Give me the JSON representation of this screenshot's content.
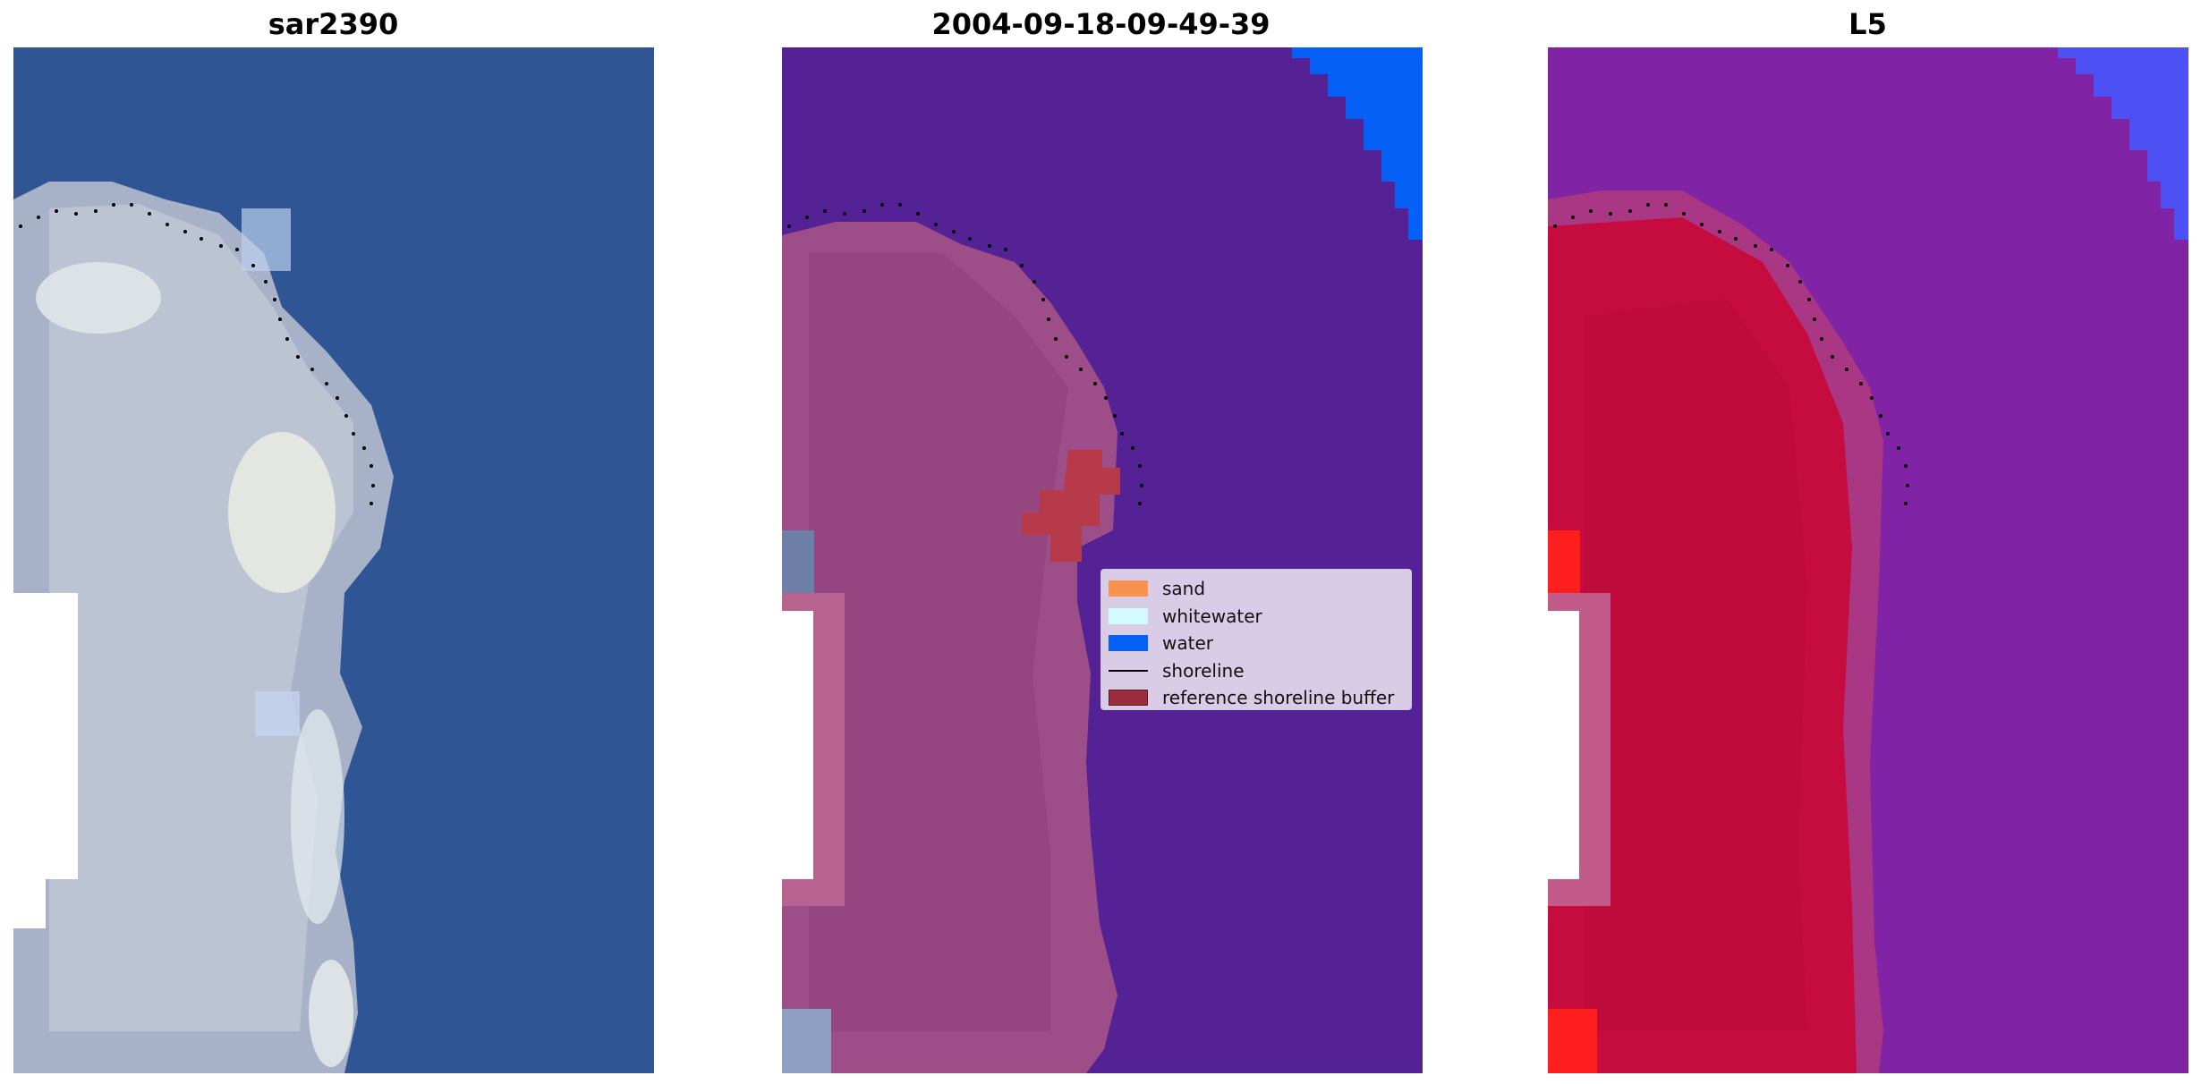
{
  "panels": [
    {
      "title": "sar2390"
    },
    {
      "title": "2004-09-18-09-49-39"
    },
    {
      "title": "L5"
    }
  ],
  "legend": {
    "items": [
      {
        "label": "sand",
        "color": "#f8924e",
        "kind": "patch"
      },
      {
        "label": "whitewater",
        "color": "#d2fbff",
        "kind": "patch"
      },
      {
        "label": "water",
        "color": "#0560f6",
        "kind": "patch"
      },
      {
        "label": "shoreline",
        "color": "#000000",
        "kind": "line"
      },
      {
        "label": "reference shoreline buffer",
        "color": "#9a2c3c",
        "kind": "patch"
      }
    ]
  },
  "colors": {
    "rgb_water": "#2e5393",
    "rgb_land": "#a7b2c8",
    "class_water": "#542295",
    "class_sand_overlay": "#9d4d87",
    "class_deep_water": "#0560f6",
    "class_buffer": "#b73a4a",
    "index_land": "#c60c3e",
    "index_water": "#7b20a2",
    "index_deep": "#4d50f2"
  }
}
